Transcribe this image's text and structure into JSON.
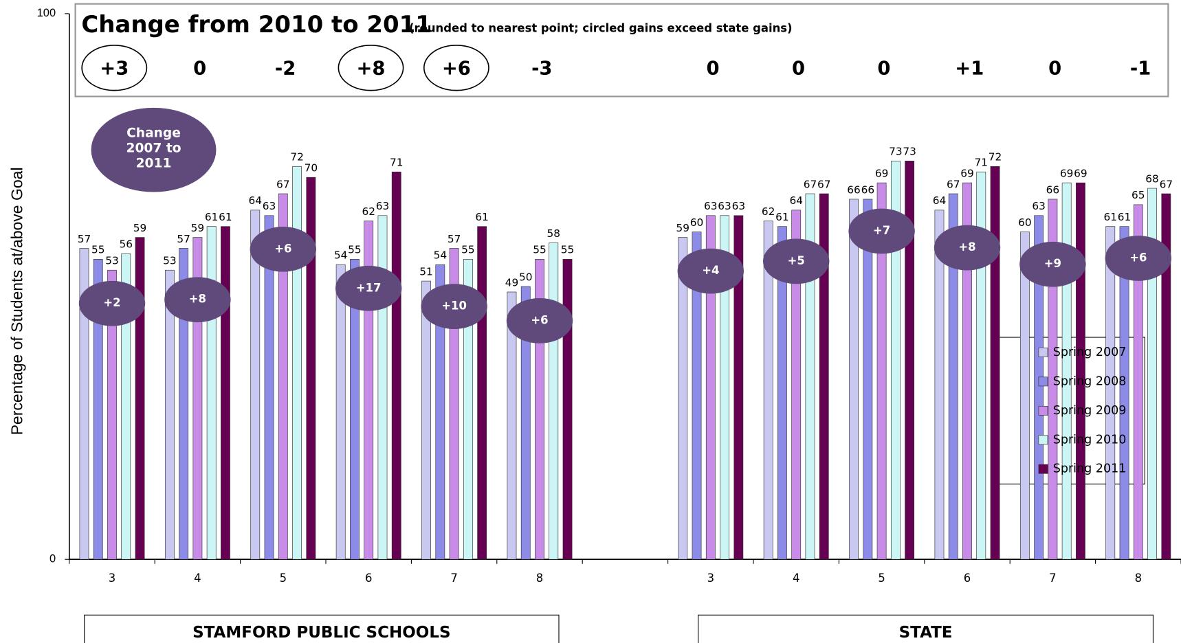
{
  "chart_data": {
    "type": "bar",
    "title": "Change from 2010 to 2011",
    "subtitle": "(rounded to nearest point; circled gains exceed state gains)",
    "y_label": "Percentage of Students at/above Goal",
    "categories": [
      "3",
      "4",
      "5",
      "6",
      "7",
      "8",
      null,
      "3",
      "4",
      "5",
      "6",
      "7",
      "8"
    ],
    "groups": [
      "STAMFORD PUBLIC SCHOOLS",
      "STATE"
    ],
    "series": [
      {
        "name": "Spring 2007",
        "color": "#c8c8f0",
        "values": [
          57,
          53,
          64,
          54,
          51,
          49,
          null,
          59,
          62,
          66,
          64,
          60,
          61
        ]
      },
      {
        "name": "Spring 2008",
        "color": "#8c8ce8",
        "values": [
          55,
          57,
          63,
          55,
          54,
          50,
          null,
          60,
          61,
          66,
          67,
          63,
          61
        ]
      },
      {
        "name": "Spring 2009",
        "color": "#c88ce8",
        "values": [
          53,
          59,
          67,
          62,
          57,
          55,
          null,
          63,
          64,
          69,
          69,
          66,
          65
        ]
      },
      {
        "name": "Spring 2010",
        "color": "#ccf6f6",
        "values": [
          56,
          61,
          72,
          63,
          55,
          58,
          null,
          63,
          67,
          73,
          71,
          69,
          68
        ]
      },
      {
        "name": "Spring 2011",
        "color": "#660052",
        "values": [
          59,
          61,
          70,
          71,
          61,
          55,
          null,
          63,
          67,
          73,
          72,
          69,
          67
        ]
      }
    ],
    "change_2010_2011": [
      "+3",
      "0",
      "-2",
      "+8",
      "+6",
      "-3",
      null,
      "0",
      "0",
      "0",
      "+1",
      "0",
      "-1"
    ],
    "circled": [
      true,
      false,
      false,
      true,
      true,
      false,
      null,
      false,
      false,
      false,
      false,
      false,
      false
    ],
    "change_2007_2011_label": "Change 2007 to 2011",
    "change_2007_2011": [
      "+2",
      "+8",
      "+6",
      "+17",
      "+10",
      "+6",
      null,
      "+4",
      "+5",
      "+7",
      "+8",
      "+9",
      "+6"
    ],
    "ylim": [
      0,
      100
    ],
    "yticks": [
      0,
      100
    ],
    "legend": "lower right"
  }
}
